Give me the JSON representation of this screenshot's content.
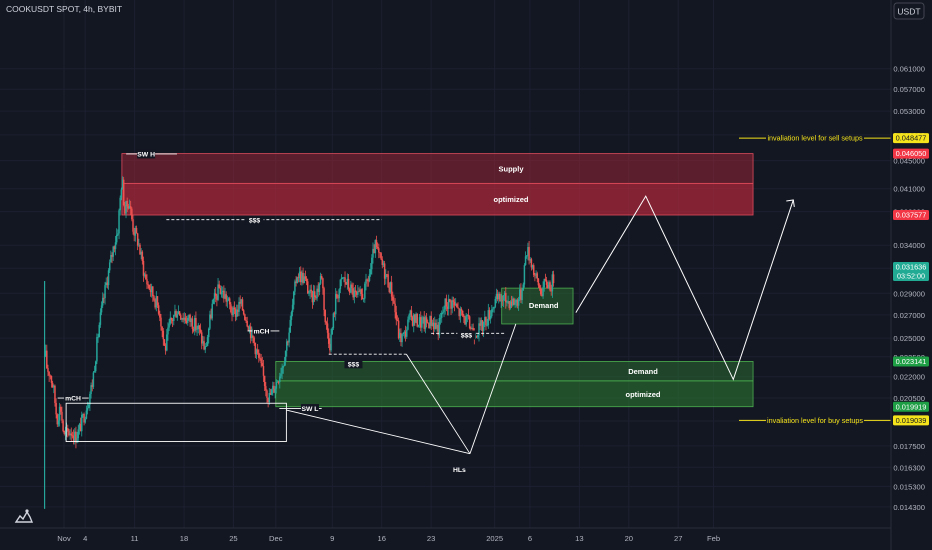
{
  "header": {
    "symbol_line": "COOKUSDT SPOT, 4h, BYBIT"
  },
  "currency_button": {
    "label": "USDT"
  },
  "colors": {
    "background": "#131722",
    "grid": "#1c2030",
    "axis_text": "#b2b5be",
    "up": "#26a69a",
    "down": "#ef5350",
    "supply": "#b2283a",
    "demand": "#2e7d32",
    "annotation": "#ffffff",
    "invalidation": "#f5e31b",
    "tag_red": "#f23645",
    "tag_green": "#1e9e45",
    "tag_teal": "#22ab94",
    "tag_yellow": "#f5e31b"
  },
  "chart_data": {
    "type": "candlestick",
    "title": "COOKUSDT SPOT, 4h, BYBIT",
    "y_scale": "log",
    "ylim": [
      0.01378,
      0.0705
    ],
    "y_ticks": [
      "0.061000",
      "0.057000",
      "0.053000",
      "0.049000",
      "0.045000",
      "0.041000",
      "0.038000",
      "0.034000",
      "0.031500",
      "0.029000",
      "0.027000",
      "0.025000",
      "0.023500",
      "0.022000",
      "0.020500",
      "0.019000",
      "0.017500",
      "0.016300",
      "0.015300",
      "0.014300"
    ],
    "x_ticks": [
      {
        "label": "Nov",
        "day": 0
      },
      {
        "label": "4",
        "day": 3
      },
      {
        "label": "11",
        "day": 10
      },
      {
        "label": "18",
        "day": 17
      },
      {
        "label": "25",
        "day": 24
      },
      {
        "label": "Dec",
        "day": 30
      },
      {
        "label": "9",
        "day": 38
      },
      {
        "label": "16",
        "day": 45
      },
      {
        "label": "23",
        "day": 52
      },
      {
        "label": "2025",
        "day": 61
      },
      {
        "label": "6",
        "day": 66
      },
      {
        "label": "13",
        "day": 73
      },
      {
        "label": "20",
        "day": 80
      },
      {
        "label": "27",
        "day": 87
      },
      {
        "label": "Feb",
        "day": 92
      }
    ],
    "price_path": [
      [
        -2.8,
        0.0142
      ],
      [
        -2.75,
        0.03
      ],
      [
        -2.7,
        0.024
      ],
      [
        -2.4,
        0.0226
      ],
      [
        -2,
        0.0223
      ],
      [
        -1.5,
        0.0212
      ],
      [
        -1,
        0.0191
      ],
      [
        -0.5,
        0.02
      ],
      [
        0,
        0.018
      ],
      [
        0.5,
        0.0183
      ],
      [
        1,
        0.0184
      ],
      [
        1.6,
        0.018
      ],
      [
        2.1,
        0.0184
      ],
      [
        3,
        0.0196
      ],
      [
        4,
        0.0215
      ],
      [
        5,
        0.0262
      ],
      [
        6,
        0.03
      ],
      [
        7,
        0.0338
      ],
      [
        7.6,
        0.0357
      ],
      [
        8.2,
        0.0426
      ],
      [
        8.6,
        0.038
      ],
      [
        9.2,
        0.0395
      ],
      [
        9.8,
        0.036
      ],
      [
        10.5,
        0.0344
      ],
      [
        11.5,
        0.0305
      ],
      [
        12.5,
        0.029
      ],
      [
        13.5,
        0.0275
      ],
      [
        14.3,
        0.024
      ],
      [
        15,
        0.0262
      ],
      [
        16,
        0.0275
      ],
      [
        17,
        0.0268
      ],
      [
        18,
        0.0265
      ],
      [
        19,
        0.0258
      ],
      [
        20,
        0.024
      ],
      [
        21,
        0.0278
      ],
      [
        22,
        0.0295
      ],
      [
        23,
        0.0285
      ],
      [
        24,
        0.027
      ],
      [
        25,
        0.028
      ],
      [
        26,
        0.0265
      ],
      [
        27,
        0.0245
      ],
      [
        28,
        0.0225
      ],
      [
        29,
        0.0205
      ],
      [
        30,
        0.0215
      ],
      [
        31,
        0.023
      ],
      [
        32,
        0.026
      ],
      [
        33,
        0.031
      ],
      [
        34,
        0.0305
      ],
      [
        35,
        0.0285
      ],
      [
        36,
        0.0295
      ],
      [
        36.5,
        0.031
      ],
      [
        37,
        0.0265
      ],
      [
        37.7,
        0.0245
      ],
      [
        38.5,
        0.0285
      ],
      [
        39.5,
        0.0305
      ],
      [
        40.5,
        0.0295
      ],
      [
        41.5,
        0.0285
      ],
      [
        42.5,
        0.029
      ],
      [
        43.5,
        0.0315
      ],
      [
        44,
        0.034
      ],
      [
        45.5,
        0.031
      ],
      [
        46.5,
        0.029
      ],
      [
        47.5,
        0.025
      ],
      [
        48.2,
        0.0252
      ],
      [
        49,
        0.0268
      ],
      [
        50,
        0.0265
      ],
      [
        51,
        0.0262
      ],
      [
        52,
        0.0265
      ],
      [
        53,
        0.0258
      ],
      [
        54,
        0.028
      ],
      [
        55,
        0.0282
      ],
      [
        56,
        0.0272
      ],
      [
        57,
        0.0265
      ],
      [
        58,
        0.0256
      ],
      [
        59,
        0.0258
      ],
      [
        60,
        0.0268
      ],
      [
        61,
        0.0282
      ],
      [
        62,
        0.0285
      ],
      [
        63,
        0.0283
      ],
      [
        64,
        0.0282
      ],
      [
        64.8,
        0.029
      ],
      [
        65.5,
        0.0336
      ],
      [
        66.2,
        0.0323
      ],
      [
        66.8,
        0.0305
      ],
      [
        67.6,
        0.0292
      ],
      [
        68.3,
        0.0301
      ],
      [
        69,
        0.0298
      ],
      [
        69.5,
        0.031
      ]
    ],
    "zones": [
      {
        "name": "Supply",
        "price_top": 0.04605,
        "price_bottom": 0.04173,
        "from_day": 8.2,
        "to_day": 97.6
      },
      {
        "name": "optimized",
        "price_top": 0.04173,
        "price_bottom": 0.03758,
        "from_day": 8.2,
        "to_day": 97.6
      },
      {
        "name": "Demand",
        "price_top": 0.02314,
        "price_bottom": 0.0217,
        "from_day": 30,
        "to_day": 97.6
      },
      {
        "name": "optimized",
        "price_top": 0.0217,
        "price_bottom": 0.01992,
        "from_day": 30,
        "to_day": 97.6
      },
      {
        "name": "Demand",
        "price_top": 0.0295,
        "price_bottom": 0.0262,
        "from_day": 62,
        "to_day": 72.1
      }
    ],
    "price_tags": [
      {
        "price": 0.048477,
        "label": "0.048477",
        "style": "yellow"
      },
      {
        "price": 0.04605,
        "label": "0.046050",
        "style": "red"
      },
      {
        "price": 0.037577,
        "label": "0.037577",
        "style": "red"
      },
      {
        "price": 0.031636,
        "label": "0.031636",
        "sub": "03:52:00",
        "style": "teal"
      },
      {
        "price": 0.023141,
        "label": "0.023141",
        "style": "green"
      },
      {
        "price": 0.019919,
        "label": "0.019919",
        "style": "green"
      },
      {
        "price": 0.019039,
        "label": "0.019039",
        "style": "yellow"
      }
    ],
    "annotations": [
      {
        "text": "invaliation level for sell setups",
        "price": 0.048477
      },
      {
        "text": "invaliation level for buy setups",
        "price": 0.019039
      },
      {
        "text": "SW H",
        "day": 8.8,
        "price": 0.046
      },
      {
        "text": "SW L",
        "day": 33,
        "price": 0.0198
      },
      {
        "text": "mCH",
        "day": 1,
        "price": 0.0205
      },
      {
        "text": "mCH",
        "day": 27.7,
        "price": 0.0256
      },
      {
        "text": "$$$",
        "day": 26,
        "price": 0.037
      },
      {
        "text": "$$$",
        "day": 41,
        "price": 0.023
      },
      {
        "text": "$$$",
        "day": 57,
        "price": 0.0253
      },
      {
        "text": "HLs",
        "day": 56,
        "price": 0.0167
      }
    ]
  }
}
